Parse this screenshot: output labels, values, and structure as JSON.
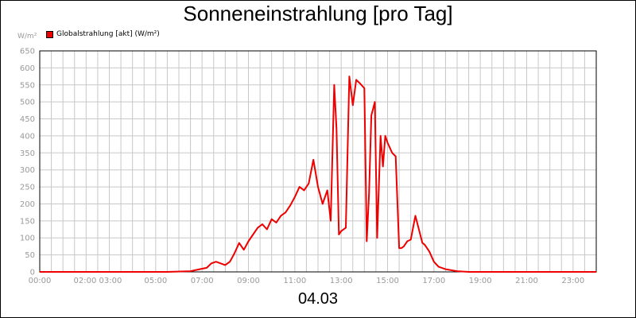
{
  "title": "Sonneneinstrahlung [pro Tag]",
  "date_label": "04.03",
  "unit_label": "W/m²",
  "colors": {
    "series": "#ee0000",
    "grid": "#c8c8c8",
    "axis": "#000000",
    "tick_text": "#999999"
  },
  "chart_data": {
    "type": "line",
    "title": "Sonneneinstrahlung [pro Tag]",
    "xlabel": "04.03",
    "ylabel": "W/m²",
    "xlim": [
      0,
      24
    ],
    "ylim": [
      0,
      650
    ],
    "y_ticks": [
      0,
      50,
      100,
      150,
      200,
      250,
      300,
      350,
      400,
      450,
      500,
      550,
      600,
      650
    ],
    "x_ticks": [
      {
        "x": 0,
        "label": "00:00"
      },
      {
        "x": 2.5,
        "label": "02:00 03:00"
      },
      {
        "x": 5,
        "label": "05:00"
      },
      {
        "x": 7,
        "label": "07:00"
      },
      {
        "x": 9,
        "label": "09:00"
      },
      {
        "x": 11,
        "label": "11:00"
      },
      {
        "x": 13,
        "label": "13:00"
      },
      {
        "x": 15,
        "label": "15:00"
      },
      {
        "x": 17,
        "label": "17:00"
      },
      {
        "x": 19,
        "label": "19:00"
      },
      {
        "x": 21,
        "label": "21:00"
      },
      {
        "x": 23,
        "label": "23:00"
      }
    ],
    "grid": true,
    "legend": "top-left",
    "series": [
      {
        "name": "Globalstrahlung [akt] (W/m²)",
        "x": [
          0,
          5.5,
          6.5,
          6.9,
          7.2,
          7.4,
          7.6,
          7.8,
          8.0,
          8.2,
          8.4,
          8.6,
          8.8,
          9.0,
          9.2,
          9.4,
          9.6,
          9.8,
          10.0,
          10.2,
          10.4,
          10.6,
          10.8,
          11.0,
          11.2,
          11.4,
          11.6,
          11.8,
          12.0,
          12.2,
          12.4,
          12.55,
          12.7,
          12.8,
          12.9,
          13.0,
          13.2,
          13.35,
          13.5,
          13.65,
          13.8,
          14.0,
          14.1,
          14.2,
          14.3,
          14.45,
          14.55,
          14.7,
          14.8,
          14.9,
          15.0,
          15.1,
          15.2,
          15.35,
          15.5,
          15.6,
          15.7,
          15.85,
          16.0,
          16.2,
          16.35,
          16.5,
          16.6,
          16.8,
          17.0,
          17.2,
          17.5,
          18.0,
          18.5,
          19.0,
          24.0
        ],
        "y": [
          0,
          0,
          2,
          8,
          12,
          25,
          30,
          25,
          20,
          30,
          55,
          85,
          65,
          90,
          110,
          130,
          140,
          125,
          155,
          145,
          165,
          175,
          195,
          220,
          250,
          240,
          260,
          330,
          250,
          200,
          240,
          150,
          550,
          420,
          110,
          120,
          130,
          575,
          490,
          565,
          555,
          540,
          90,
          230,
          460,
          500,
          100,
          400,
          310,
          400,
          380,
          365,
          350,
          340,
          70,
          70,
          75,
          90,
          95,
          165,
          125,
          85,
          80,
          60,
          30,
          15,
          8,
          2,
          0,
          0,
          0
        ]
      }
    ]
  }
}
